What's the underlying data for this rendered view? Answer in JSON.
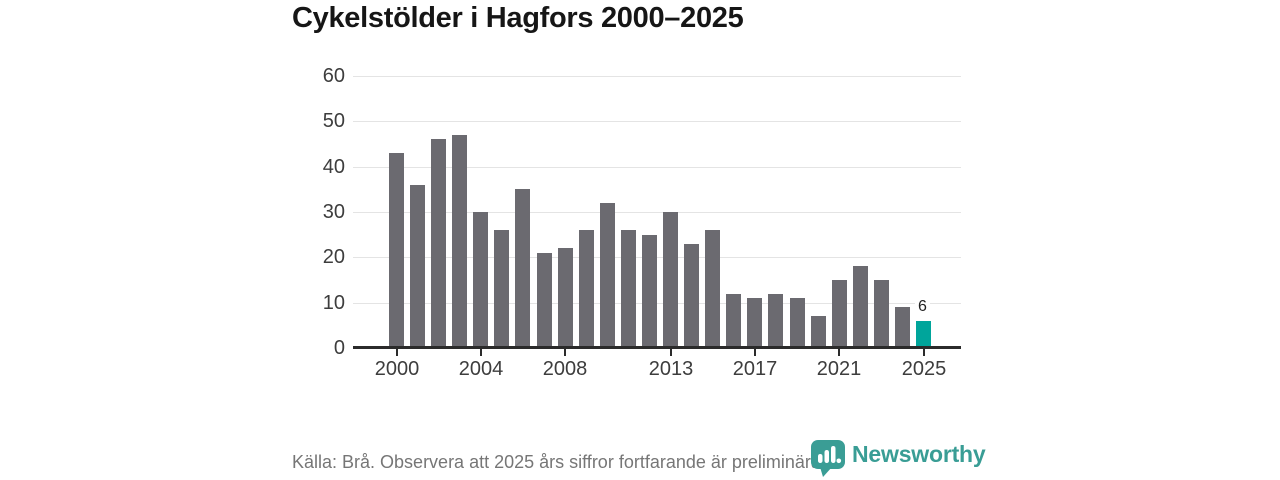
{
  "title": "Cykelstölder i Hagfors 2000–2025",
  "chart_data": {
    "type": "bar",
    "title": "Cykelstölder i Hagfors 2000–2025",
    "categories": [
      2000,
      2001,
      2002,
      2003,
      2004,
      2005,
      2006,
      2007,
      2008,
      2009,
      2010,
      2011,
      2012,
      2013,
      2014,
      2015,
      2016,
      2017,
      2018,
      2019,
      2020,
      2021,
      2022,
      2023,
      2024,
      2025
    ],
    "values": [
      43,
      36,
      46,
      47,
      30,
      26,
      35,
      21,
      22,
      26,
      32,
      26,
      25,
      30,
      23,
      26,
      12,
      11,
      12,
      11,
      7,
      15,
      18,
      15,
      9,
      6
    ],
    "xlabel": "",
    "ylabel": "",
    "ylim": [
      0,
      60
    ],
    "yticks": [
      0,
      10,
      20,
      30,
      40,
      50,
      60
    ],
    "xtick_years": [
      2000,
      2004,
      2008,
      2013,
      2017,
      2021,
      2025
    ],
    "grid": true,
    "legend": "none",
    "bar_color": "#6b6a70",
    "highlight_color": "#00a59b",
    "highlight_year": 2025,
    "data_label": {
      "year": 2025,
      "text": "6"
    }
  },
  "footer": {
    "source_text": "Källa: Brå. Observera att 2025 års siffror fortfarande är preliminära."
  },
  "logo": {
    "text": "Newsworthy",
    "text_color": "#399d95",
    "icon": "newsworthy-bubble-chart-icon",
    "icon_color": "#3a9d95"
  },
  "colors": {
    "title": "#161616",
    "axis_label": "#3d3d3d",
    "gridline": "#e4e4e4",
    "axis_line": "#2b2b2b",
    "footer_text": "#767676"
  }
}
